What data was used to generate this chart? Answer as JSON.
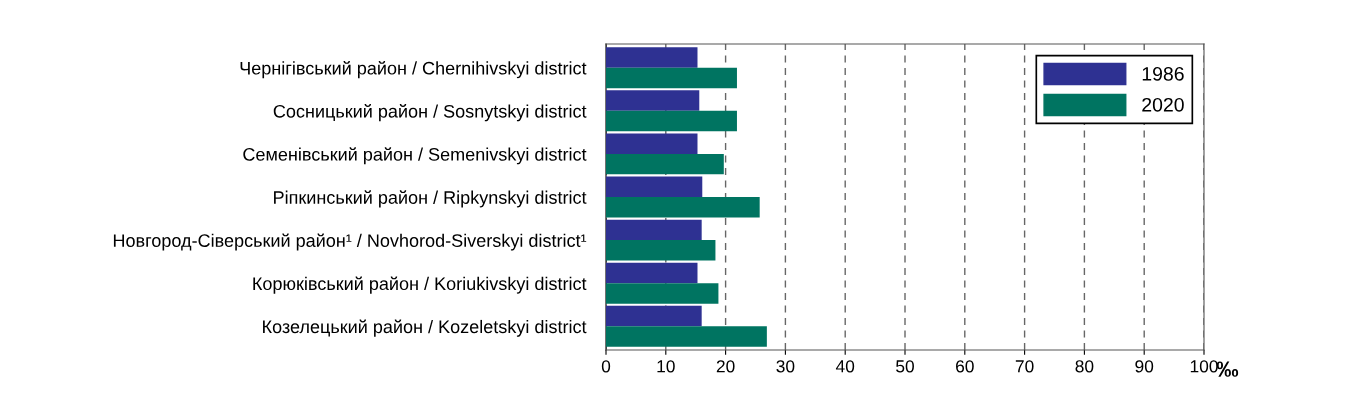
{
  "chart_data": {
    "type": "bar",
    "orientation": "horizontal",
    "categories": [
      "Чернігівський район / Chernihivskyi district",
      "Сосницький район / Sosnytskyi district",
      "Семенівський район / Semenivskyi district",
      "Ріпкинський район / Ripkynskyi district",
      "Новгород-Сіверський район¹ / Novhorod-Siverskyi district¹",
      "Корюківський район / Koriukivskyi district",
      "Козелецький район / Kozeletskyi district"
    ],
    "series": [
      {
        "name": "1986",
        "color": "#2e3192",
        "values": [
          15.3,
          15.6,
          15.3,
          16.1,
          16.0,
          15.3,
          16.0
        ]
      },
      {
        "name": "2020",
        "color": "#007461",
        "values": [
          21.9,
          21.9,
          19.7,
          25.7,
          18.3,
          18.8,
          26.9
        ]
      }
    ],
    "xlabel": "‰",
    "xlim": [
      0,
      100
    ],
    "xticks": [
      0,
      10,
      20,
      30,
      40,
      50,
      60,
      70,
      80,
      90,
      100
    ],
    "grid": "x",
    "legend": "top right"
  }
}
